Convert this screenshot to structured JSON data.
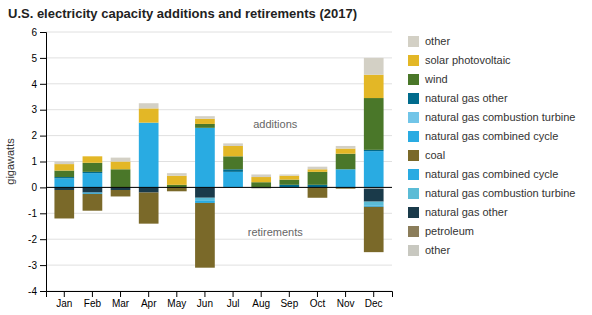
{
  "chart_data": {
    "type": "bar",
    "stacked": true,
    "title": "U.S. electricity capacity additions and retirements (2017)",
    "ylabel": "gigawatts",
    "categories": [
      "Jan",
      "Feb",
      "Mar",
      "Apr",
      "May",
      "Jun",
      "Jul",
      "Aug",
      "Sep",
      "Oct",
      "Nov",
      "Dec"
    ],
    "series": [
      {
        "name": "other",
        "color": "#C8C8C0",
        "values": [
          0.0,
          0.0,
          0.0,
          0.0,
          0.0,
          0.0,
          0.0,
          -0.05,
          0.0,
          0.0,
          0.0,
          -0.05
        ]
      },
      {
        "name": "petroleum",
        "color": "#8B7D5A",
        "values": [
          0.0,
          0.0,
          0.0,
          0.0,
          0.0,
          0.0,
          0.0,
          0.0,
          0.0,
          0.0,
          0.0,
          0.0
        ]
      },
      {
        "name": "natural gas other",
        "color": "#1A3A4A",
        "values": [
          -0.1,
          -0.2,
          -0.1,
          -0.2,
          0.0,
          -0.4,
          0.0,
          0.0,
          0.0,
          0.0,
          0.0,
          -0.5
        ]
      },
      {
        "name": "natural gas combustion turbine",
        "color": "#5BBCD6",
        "values": [
          0.0,
          0.0,
          0.0,
          0.0,
          0.0,
          -0.1,
          0.0,
          0.0,
          0.0,
          0.0,
          0.0,
          -0.15
        ]
      },
      {
        "name": "natural gas combined cycle",
        "color": "#29ABE2",
        "values": [
          0.0,
          -0.05,
          0.0,
          0.0,
          0.0,
          -0.1,
          0.0,
          0.0,
          0.0,
          0.0,
          0.0,
          -0.05
        ]
      },
      {
        "name": "coal",
        "color": "#7A6929",
        "values": [
          -1.1,
          -0.65,
          -0.25,
          -1.2,
          -0.15,
          -2.5,
          0.0,
          0.0,
          0.0,
          -0.4,
          -0.05,
          -1.75
        ]
      },
      {
        "name": "natural gas combined cycle",
        "color": "#29ABE2",
        "values": [
          0.35,
          0.55,
          0.0,
          2.5,
          0.0,
          2.3,
          0.6,
          0.0,
          0.0,
          0.0,
          0.7,
          1.4
        ]
      },
      {
        "name": "natural gas combustion turbine",
        "color": "#71C5E8",
        "values": [
          0.0,
          0.0,
          0.0,
          0.0,
          0.0,
          0.0,
          0.0,
          0.0,
          0.0,
          0.0,
          0.0,
          0.0
        ]
      },
      {
        "name": "natural gas other",
        "color": "#006B8C",
        "values": [
          0.05,
          0.05,
          0.0,
          0.0,
          0.0,
          0.0,
          0.1,
          0.0,
          0.1,
          0.1,
          0.0,
          0.05
        ]
      },
      {
        "name": "wind",
        "color": "#4A7729",
        "values": [
          0.25,
          0.35,
          0.7,
          0.0,
          0.1,
          0.15,
          0.5,
          0.2,
          0.2,
          0.5,
          0.6,
          2.0
        ]
      },
      {
        "name": "solar photovoltaic",
        "color": "#E3B726",
        "values": [
          0.25,
          0.25,
          0.3,
          0.55,
          0.35,
          0.2,
          0.4,
          0.2,
          0.15,
          0.1,
          0.2,
          0.9
        ]
      },
      {
        "name": "other",
        "color": "#D3D0C5",
        "values": [
          0.1,
          0.0,
          0.15,
          0.2,
          0.1,
          0.1,
          0.1,
          0.1,
          0.05,
          0.1,
          0.1,
          0.65
        ]
      }
    ],
    "ylim": [
      -4,
      6
    ],
    "yticks": [
      -4,
      -3,
      -2,
      -1,
      0,
      1,
      2,
      3,
      4,
      5,
      6
    ],
    "grid": true,
    "legend": "right",
    "annotations": [
      {
        "text": "additions",
        "x": 7.5,
        "y": 2.4
      },
      {
        "text": "retirements",
        "x": 7.5,
        "y": -1.75
      }
    ]
  }
}
